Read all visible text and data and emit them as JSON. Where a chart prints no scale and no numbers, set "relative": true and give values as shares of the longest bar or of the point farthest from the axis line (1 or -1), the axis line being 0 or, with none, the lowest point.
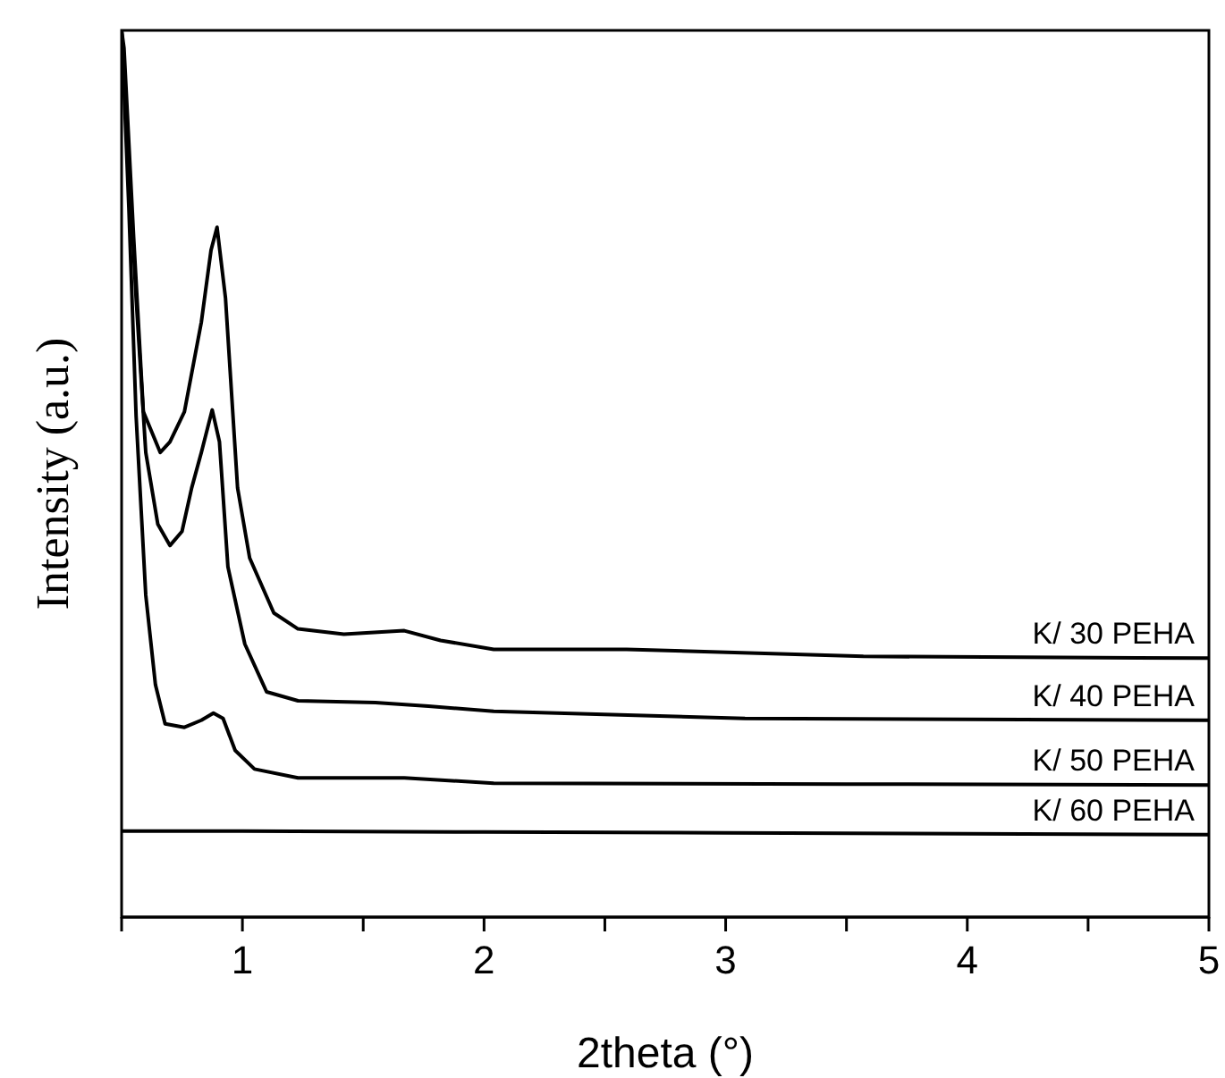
{
  "chart_data": {
    "type": "line",
    "relative": true,
    "xlabel": "2theta (°)",
    "ylabel": "Intensity (a.u.)",
    "xlim": [
      0.5,
      5
    ],
    "xticks": [
      {
        "value": 0.5,
        "label": null
      },
      1,
      {
        "value": 1.5,
        "label": null
      },
      2,
      {
        "value": 2.5,
        "label": null
      },
      3,
      {
        "value": 3.5,
        "label": null
      },
      4,
      {
        "value": 4.5,
        "label": null
      },
      5
    ],
    "tick_labels": "x",
    "grid": false,
    "line_style": "solid",
    "series": [
      {
        "name": "K/ 30 PEHA",
        "color": "#000000",
        "x": [
          0.5,
          0.51,
          0.55,
          0.59,
          0.66,
          0.7,
          0.76,
          0.83,
          0.87,
          0.895,
          0.93,
          0.98,
          1.03,
          1.13,
          1.23,
          1.42,
          1.67,
          1.82,
          2.04,
          2.59,
          3.57,
          4.98,
          5
        ],
        "values": [
          1.0,
          0.98,
          0.766,
          0.57,
          0.524,
          0.536,
          0.57,
          0.671,
          0.752,
          0.778,
          0.698,
          0.484,
          0.405,
          0.343,
          0.325,
          0.319,
          0.323,
          0.312,
          0.302,
          0.302,
          0.294,
          0.292,
          0.292
        ]
      },
      {
        "name": "K/ 40 PEHA",
        "color": "#000000",
        "x": [
          0.5,
          0.52,
          0.56,
          0.6,
          0.65,
          0.7,
          0.75,
          0.79,
          0.83,
          0.875,
          0.905,
          0.94,
          1.01,
          1.1,
          1.23,
          1.55,
          1.77,
          2.04,
          3.08,
          4.98,
          5
        ],
        "values": [
          1.0,
          0.9,
          0.698,
          0.524,
          0.443,
          0.419,
          0.435,
          0.484,
          0.524,
          0.572,
          0.536,
          0.395,
          0.308,
          0.254,
          0.244,
          0.242,
          0.238,
          0.232,
          0.224,
          0.222,
          0.222
        ]
      },
      {
        "name": "K/ 50 PEHA",
        "color": "#000000",
        "x": [
          0.5,
          0.53,
          0.56,
          0.6,
          0.64,
          0.68,
          0.76,
          0.83,
          0.88,
          0.92,
          0.97,
          1.05,
          1.23,
          1.67,
          2.04,
          3.5,
          5
        ],
        "values": [
          1.0,
          0.8,
          0.565,
          0.363,
          0.262,
          0.218,
          0.214,
          0.222,
          0.23,
          0.224,
          0.188,
          0.167,
          0.157,
          0.157,
          0.151,
          0.15,
          0.149
        ]
      },
      {
        "name": "K/ 60 PEHA",
        "color": "#000000",
        "x": [
          0.5,
          1,
          2,
          3,
          4,
          5
        ],
        "values": [
          0.097,
          0.097,
          0.096,
          0.095,
          0.094,
          0.093
        ]
      }
    ]
  }
}
